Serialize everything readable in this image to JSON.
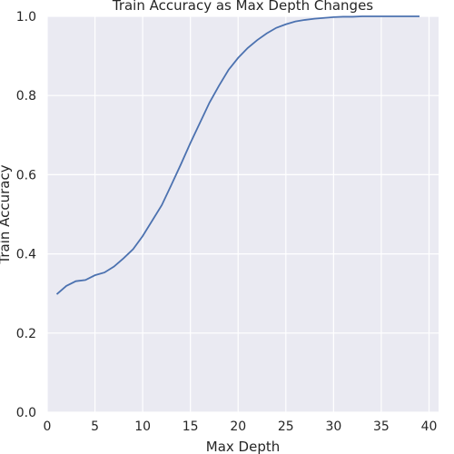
{
  "chart_data": {
    "type": "line",
    "title": "Train Accuracy as Max Depth Changes",
    "xlabel": "Max Depth",
    "ylabel": "Train Accuracy",
    "xlim": [
      0,
      41
    ],
    "ylim": [
      0.0,
      1.0
    ],
    "x_ticks": [
      0,
      5,
      10,
      15,
      20,
      25,
      30,
      35,
      40
    ],
    "y_ticks": [
      0.0,
      0.2,
      0.4,
      0.6,
      0.8,
      1.0
    ],
    "grid": true,
    "line_color": "#4c72b0",
    "background_color": "#eaeaf2",
    "series": [
      {
        "x": [
          1,
          2,
          3,
          4,
          5,
          6,
          7,
          8,
          9,
          10,
          11,
          12,
          13,
          14,
          15,
          16,
          17,
          18,
          19,
          20,
          21,
          22,
          23,
          24,
          25,
          26,
          27,
          28,
          29,
          30,
          31,
          32,
          33,
          34,
          35,
          36,
          37,
          38,
          39
        ],
        "values": [
          0.298,
          0.319,
          0.331,
          0.334,
          0.346,
          0.353,
          0.368,
          0.389,
          0.412,
          0.445,
          0.484,
          0.523,
          0.574,
          0.626,
          0.68,
          0.731,
          0.782,
          0.825,
          0.865,
          0.895,
          0.92,
          0.94,
          0.957,
          0.971,
          0.98,
          0.987,
          0.991,
          0.994,
          0.996,
          0.998,
          0.999,
          0.999,
          1.0,
          1.0,
          1.0,
          1.0,
          1.0,
          1.0,
          1.0
        ]
      }
    ]
  }
}
